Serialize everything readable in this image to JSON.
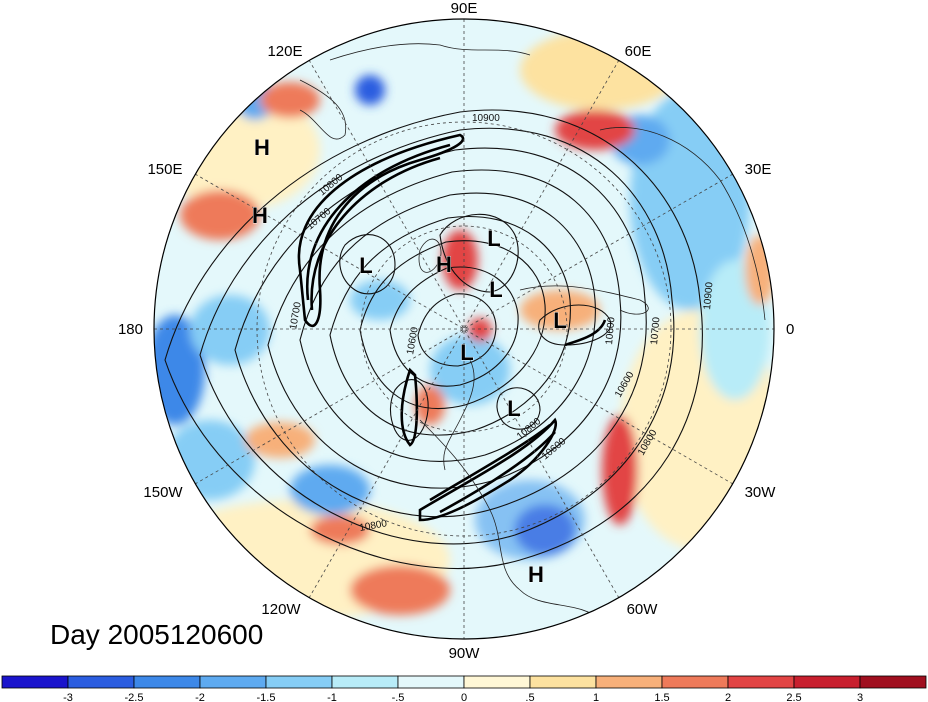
{
  "title": "Day 2005120600",
  "lon_labels": {
    "n90E": "90E",
    "n60E": "60E",
    "n30E": "30E",
    "n0": "0",
    "n30W": "30W",
    "n60W": "60W",
    "n90W": "90W",
    "n120W": "120W",
    "n150W": "150W",
    "n180": "180",
    "n150E": "150E",
    "n120E": "120E"
  },
  "colorbar": {
    "labels": [
      "-3",
      "-2.5",
      "-2",
      "-1.5",
      "-1",
      "-.5",
      "0",
      ".5",
      "1",
      "1.5",
      "2",
      "2.5",
      "3"
    ],
    "colors": [
      "#1a14cc",
      "#2b5de0",
      "#3d88e8",
      "#5eaaf0",
      "#86cdf5",
      "#b8ecf8",
      "#e4f8fb",
      "#fff7d6",
      "#fde2a0",
      "#f7b07a",
      "#ee7a5a",
      "#e24444",
      "#c81f2e",
      "#a00f1f"
    ]
  },
  "contour_labels": [
    "10900",
    "10800",
    "10700",
    "10600",
    "10900",
    "10700",
    "10600",
    "10800",
    "10600",
    "10800",
    "10700",
    "10800",
    "10600"
  ],
  "pressure_systems": [
    {
      "label": "H",
      "kind": "high"
    },
    {
      "label": "H",
      "kind": "high"
    },
    {
      "label": "L",
      "kind": "low"
    },
    {
      "label": "H",
      "kind": "high"
    },
    {
      "label": "L",
      "kind": "low"
    },
    {
      "label": "L",
      "kind": "low"
    },
    {
      "label": "L",
      "kind": "low"
    },
    {
      "label": "L",
      "kind": "low"
    },
    {
      "label": "L",
      "kind": "low"
    },
    {
      "label": "H",
      "kind": "high"
    }
  ]
}
